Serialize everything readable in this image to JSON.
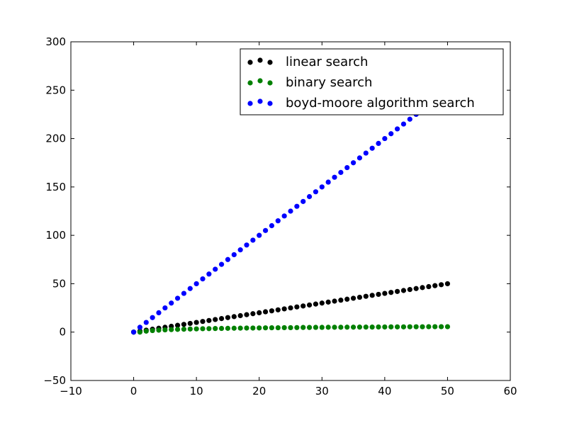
{
  "chart_data": {
    "type": "scatter",
    "title": "",
    "xlabel": "",
    "ylabel": "",
    "xlim": [
      -10,
      60
    ],
    "ylim": [
      -50,
      300
    ],
    "xticks": [
      -10,
      0,
      10,
      20,
      30,
      40,
      50,
      60
    ],
    "yticks": [
      -50,
      0,
      50,
      100,
      150,
      200,
      250,
      300
    ],
    "xtick_labels": [
      "−10",
      "0",
      "10",
      "20",
      "30",
      "40",
      "50",
      "60"
    ],
    "ytick_labels": [
      "−50",
      "0",
      "50",
      "100",
      "150",
      "200",
      "250",
      "300"
    ],
    "grid": false,
    "legend": {
      "position": "top-right"
    },
    "x": [
      0,
      1,
      2,
      3,
      4,
      5,
      6,
      7,
      8,
      9,
      10,
      11,
      12,
      13,
      14,
      15,
      16,
      17,
      18,
      19,
      20,
      21,
      22,
      23,
      24,
      25,
      26,
      27,
      28,
      29,
      30,
      31,
      32,
      33,
      34,
      35,
      36,
      37,
      38,
      39,
      40,
      41,
      42,
      43,
      44,
      45,
      46,
      47,
      48,
      49,
      50
    ],
    "series": [
      {
        "name": "linear search",
        "color": "#000000",
        "values": [
          0,
          1,
          2,
          3,
          4,
          5,
          6,
          7,
          8,
          9,
          10,
          11,
          12,
          13,
          14,
          15,
          16,
          17,
          18,
          19,
          20,
          21,
          22,
          23,
          24,
          25,
          26,
          27,
          28,
          29,
          30,
          31,
          32,
          33,
          34,
          35,
          36,
          37,
          38,
          39,
          40,
          41,
          42,
          43,
          44,
          45,
          46,
          47,
          48,
          49,
          50
        ]
      },
      {
        "name": "binary search",
        "color": "#008000",
        "values": [
          0,
          0,
          1,
          1.6,
          2,
          2.3,
          2.6,
          2.8,
          3,
          3.2,
          3.3,
          3.5,
          3.6,
          3.7,
          3.8,
          3.9,
          4,
          4.1,
          4.2,
          4.2,
          4.3,
          4.4,
          4.5,
          4.5,
          4.6,
          4.6,
          4.7,
          4.8,
          4.8,
          4.9,
          4.9,
          5,
          5,
          5,
          5.1,
          5.1,
          5.2,
          5.2,
          5.2,
          5.3,
          5.3,
          5.4,
          5.4,
          5.4,
          5.5,
          5.5,
          5.5,
          5.6,
          5.6,
          5.6,
          5.6
        ]
      },
      {
        "name": "boyd-moore algorithm search",
        "color": "#0000ff",
        "values": [
          0,
          5,
          10,
          15,
          20,
          25,
          30,
          35,
          40,
          45,
          50,
          55,
          60,
          65,
          70,
          75,
          80,
          85,
          90,
          95,
          100,
          105,
          110,
          115,
          120,
          125,
          130,
          135,
          140,
          145,
          150,
          155,
          160,
          165,
          170,
          175,
          180,
          185,
          190,
          195,
          200,
          205,
          210,
          215,
          220,
          225,
          230,
          235,
          240,
          245,
          250
        ]
      }
    ]
  }
}
